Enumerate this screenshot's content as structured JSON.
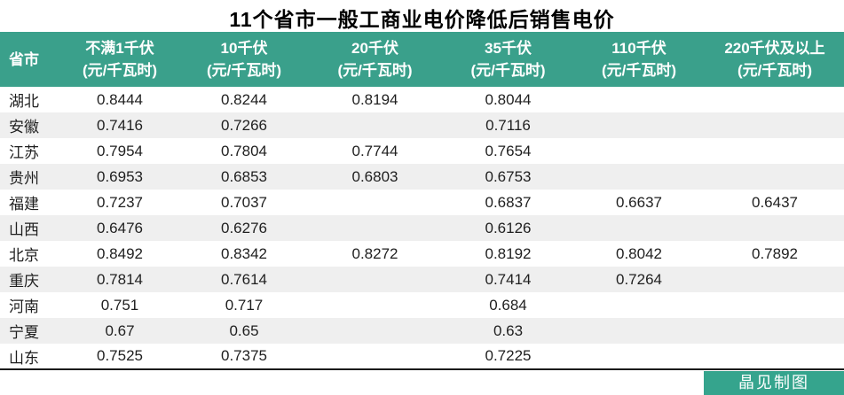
{
  "title": "11个省市一般工商业电价降低后销售电价",
  "footer": {
    "credit": "晶见制图"
  },
  "colors": {
    "header_bg": "#3AA08B",
    "header_text": "#FFFFFF",
    "stripe_bg": "#EFEFEF",
    "body_text": "#1F1F1F",
    "border": "#1A1A1A",
    "credit_bg": "#35A48D",
    "credit_text": "#FFFFFF"
  },
  "chart_data": {
    "type": "table",
    "title": "11个省市一般工商业电价降低后销售电价",
    "columns": [
      {
        "key": "province",
        "label": "省市",
        "sublabel": ""
      },
      {
        "key": "lt1kv",
        "label": "不满1千伏",
        "sublabel": "(元/千瓦时)"
      },
      {
        "key": "kv10",
        "label": "10千伏",
        "sublabel": "(元/千瓦时)"
      },
      {
        "key": "kv20",
        "label": "20千伏",
        "sublabel": "(元/千瓦时)"
      },
      {
        "key": "kv35",
        "label": "35千伏",
        "sublabel": "(元/千瓦时)"
      },
      {
        "key": "kv110",
        "label": "110千伏",
        "sublabel": "(元/千瓦时)"
      },
      {
        "key": "kv220",
        "label": "220千伏及以上",
        "sublabel": "(元/千瓦时)"
      }
    ],
    "rows": [
      {
        "province": "湖北",
        "values": [
          "0.8444",
          "0.8244",
          "0.8194",
          "0.8044",
          "",
          ""
        ]
      },
      {
        "province": "安徽",
        "values": [
          "0.7416",
          "0.7266",
          "",
          "0.7116",
          "",
          ""
        ]
      },
      {
        "province": "江苏",
        "values": [
          "0.7954",
          "0.7804",
          "0.7744",
          "0.7654",
          "",
          ""
        ]
      },
      {
        "province": "贵州",
        "values": [
          "0.6953",
          "0.6853",
          "0.6803",
          "0.6753",
          "",
          ""
        ]
      },
      {
        "province": "福建",
        "values": [
          "0.7237",
          "0.7037",
          "",
          "0.6837",
          "0.6637",
          "0.6437"
        ]
      },
      {
        "province": "山西",
        "values": [
          "0.6476",
          "0.6276",
          "",
          "0.6126",
          "",
          ""
        ]
      },
      {
        "province": "北京",
        "values": [
          "0.8492",
          "0.8342",
          "0.8272",
          "0.8192",
          "0.8042",
          "0.7892"
        ]
      },
      {
        "province": "重庆",
        "values": [
          "0.7814",
          "0.7614",
          "",
          "0.7414",
          "0.7264",
          ""
        ]
      },
      {
        "province": "河南",
        "values": [
          "0.751",
          "0.717",
          "",
          "0.684",
          "",
          ""
        ]
      },
      {
        "province": "宁夏",
        "values": [
          "0.67",
          "0.65",
          "",
          "0.63",
          "",
          ""
        ]
      },
      {
        "province": "山东",
        "values": [
          "0.7525",
          "0.7375",
          "",
          "0.7225",
          "",
          ""
        ]
      }
    ]
  }
}
